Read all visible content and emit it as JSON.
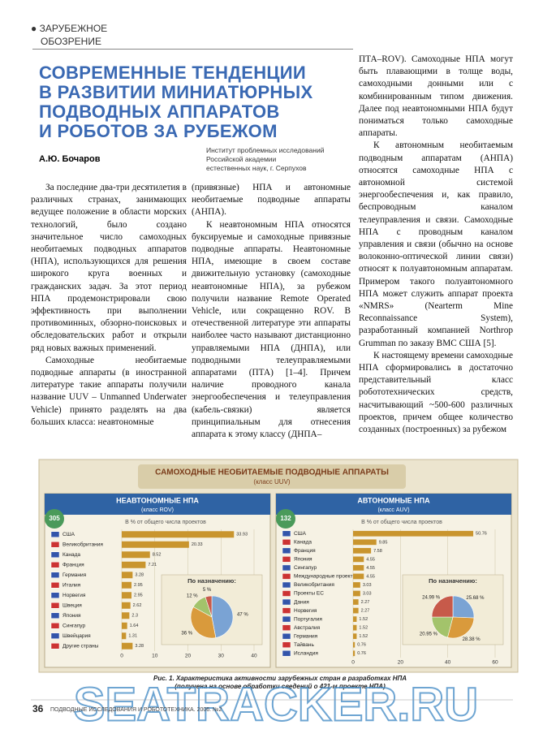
{
  "header": {
    "section": [
      "ЗАРУБЕЖНОЕ",
      "ОБОЗРЕНИЕ"
    ],
    "title": [
      "СОВРЕМЕННЫЕ ТЕНДЕНЦИИ",
      "В РАЗВИТИИ МИНИАТЮРНЫХ",
      "ПОДВОДНЫХ АППАРАТОВ",
      "И РОБОТОВ ЗА РУБЕЖОМ"
    ],
    "author": "А.Ю. Бочаров",
    "affiliation": [
      "Институт проблемных исследований",
      "Российской академии",
      "естественных наук, г. Серпухов"
    ]
  },
  "columns": [
    [
      "За последние два-три десятилетия в различных странах, занимающих ведущее положение в области морских технологий, было создано значительное число самоходных необитаемых подводных аппаратов (НПА), использующихся для решения широкого круга военных и гражданских задач. За этот период НПА продемонстрировали свою эффективность при выполнении противоминных, обзорно-поисковых и обследовательских работ и открыли ряд новых важных применений.",
      "Самоходные необитаемые подводные аппараты (в иностранной литературе такие аппараты получили название UUV – Unmanned Underwater Vehicle) принято разделять на два больших класса: неавтономные"
    ],
    [
      "(привязные) НПА и автономные необитаемые подводные аппараты (АНПА).",
      "К неавтономным НПА относятся буксируемые и самоходные привязные подводные аппараты. Неавтономные НПА, имеющие в своем составе движительную установку (самоходные неавтономные НПА), за рубежом получили название Remote Operated Vehicle, или сокращенно ROV. В отечественной литературе эти аппараты наиболее часто называют дистанционно управляемыми НПА (ДНПА), или подводными телеуправляемыми аппаратами (ПТА) [1–4]. Причем наличие проводного канала энергообеспечения и телеуправления (кабель-связки) является принципиальным для отнесения аппарата к этому классу (ДНПА–"
    ],
    [
      "ПТА–ROV). Самоходные НПА могут быть плавающими в толще воды, самоходными донными или с комбинированным типом движения. Далее под неавтономными НПА будут пониматься только самоходные аппараты.",
      "К автономным необитаемым подводным аппаратам (АНПА) относятся самоходные НПА с автономной системой энергообеспечения и, как правило, беспроводным каналом телеуправления и связи. Самоходные НПА с проводным каналом управления и связи (обычно на основе волоконно-оптической линии связи) относят к полуавтономным аппаратам. Примером такого полуавтономного НПА может служить аппарат проекта «NMRS» (Nearterm Mine Reconnaissance System), разработанный компанией Northrop Grumman по заказу ВМС США [5].",
      "К настоящему времени самоходные НПА сформировались в достаточно представительный класс робототехнических средств, насчитывающий ~500-600 различных проектов, причем общее количество созданных (построенных) за рубежом"
    ]
  ],
  "figure": {
    "title": "САМОХОДНЫЕ НЕОБИТАЕМЫЕ ПОДВОДНЫЕ АППАРАТЫ",
    "subtitle": "(класс UUV)",
    "panels": [
      {
        "title": "НЕАВТОНОМНЫЕ НПА",
        "subtitle": "(класс ROV)",
        "count": 305,
        "axis_label": "В % от общего числа проектов",
        "categories": [
          "США",
          "Великобритания",
          "Канада",
          "Франция",
          "Германия",
          "Италия",
          "Норвегия",
          "Швеция",
          "Япония",
          "Сингапур",
          "Швейцария",
          "Другие страны"
        ],
        "values": [
          33.93,
          20.33,
          8.52,
          7.21,
          3.28,
          2.95,
          2.95,
          2.62,
          2.3,
          1.64,
          1.31,
          3.28
        ],
        "xlim": [
          0,
          40
        ],
        "xticks": [
          0,
          10,
          20,
          30,
          40
        ],
        "pie_title": "По назначению:",
        "pie_values": [
          47,
          36,
          12,
          5
        ],
        "pie_labels": [
          "47 %",
          "36 %",
          "12 %",
          "5 %"
        ]
      },
      {
        "title": "АВТОНОМНЫЕ НПА",
        "subtitle": "(класс AUV)",
        "count": 132,
        "axis_label": "В % от общего числа проектов",
        "categories": [
          "США",
          "Канада",
          "Франция",
          "Япония",
          "Сингапур",
          "Международные проекты",
          "Великобритания",
          "Проекты ЕС",
          "Дания",
          "Норвегия",
          "Португалия",
          "Австралия",
          "Германия",
          "Тайвань",
          "Исландия"
        ],
        "values": [
          50.76,
          9.85,
          7.58,
          4.55,
          4.55,
          4.55,
          3.03,
          3.03,
          2.27,
          2.27,
          1.52,
          1.52,
          1.52,
          0.76,
          0.76
        ],
        "xlim": [
          0,
          60
        ],
        "xticks": [
          0,
          20,
          40,
          60
        ],
        "pie_title": "По назначению:",
        "pie_values": [
          25.68,
          28.38,
          20.95,
          24.99
        ],
        "pie_labels": [
          "25.68 %",
          "28.38 %",
          "20.95 %",
          "24.99 %"
        ]
      }
    ],
    "caption": [
      "Рис. 1. Характеристика активности зарубежных стран в разработках НПА",
      "(получена на основе обработки сведений о 421-м проекте НПА)"
    ]
  },
  "footer": {
    "page": "36",
    "journal": "ПОДВОДНЫЕ ИССЛЕДОВАНИЯ И РОБОТОТЕХНИКА. 2006. №2"
  },
  "watermark": "SEATRACKER.RU"
}
